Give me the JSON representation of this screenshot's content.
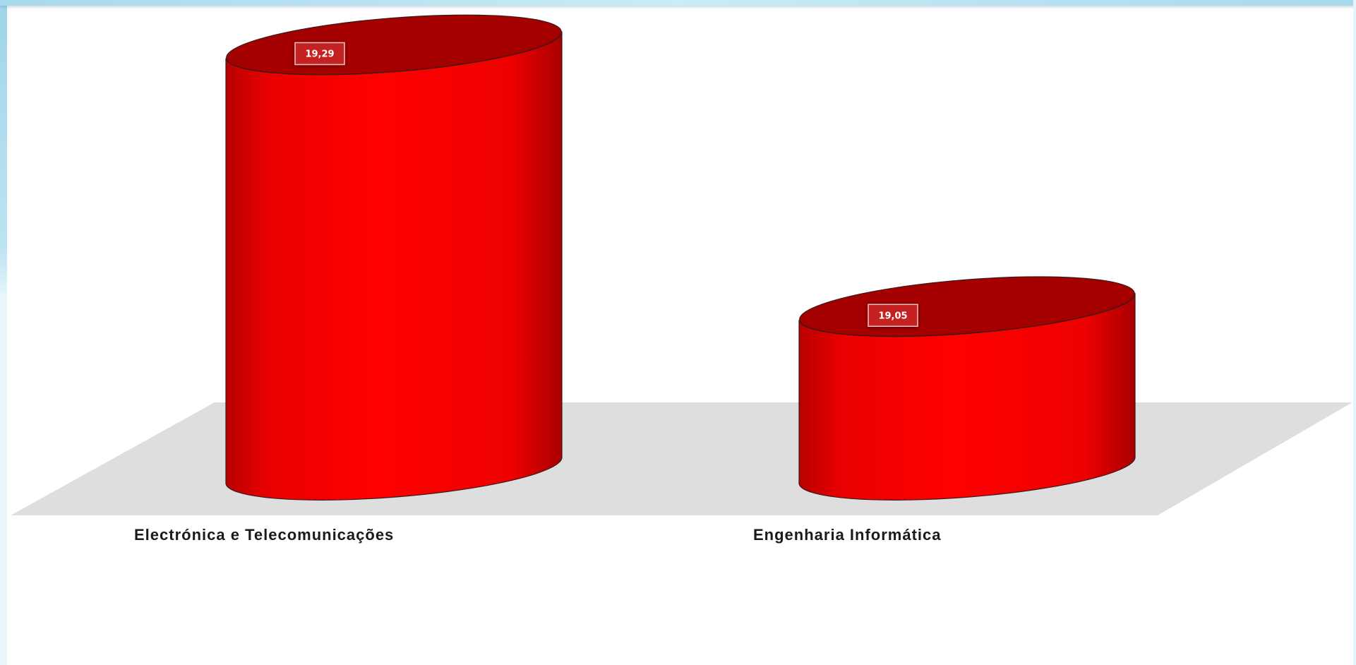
{
  "chart_data": {
    "type": "bar",
    "style": "3d-cylinder",
    "categories": [
      "Electrónica e Telecomunicações",
      "Engenharia Informática"
    ],
    "values": [
      19.29,
      19.05
    ],
    "value_labels": [
      "19,29",
      "19,05"
    ],
    "ylim": [
      18.9,
      19.35
    ],
    "grid": false,
    "legend": "none",
    "title": "",
    "xlabel": "",
    "ylabel": "",
    "colors": {
      "bar": "#ff0000",
      "bar_dark": "#c00000",
      "bar_top": "#a50000",
      "floor": "#dedede",
      "label_bg": "#c42222",
      "label_border": "#f2c0c0"
    }
  }
}
